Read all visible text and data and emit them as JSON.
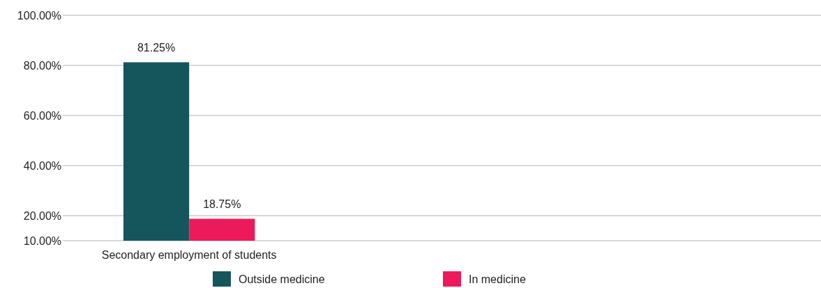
{
  "chart_data": {
    "type": "bar",
    "categories": [
      "Secondary employment of students"
    ],
    "series": [
      {
        "name": "Outside medicine",
        "color": "#14565c",
        "values": [
          81.25
        ],
        "value_labels": [
          "81.25%"
        ]
      },
      {
        "name": "In medicine",
        "color": "#ec1a5a",
        "values": [
          18.75
        ],
        "value_labels": [
          "18.75%"
        ]
      }
    ],
    "ylim": [
      10,
      100
    ],
    "yticks": [
      {
        "value": 10,
        "label": "10.00%"
      },
      {
        "value": 20,
        "label": "20.00%"
      },
      {
        "value": 40,
        "label": "40.00%"
      },
      {
        "value": 60,
        "label": "60.00%"
      },
      {
        "value": 80,
        "label": "80.00%"
      },
      {
        "value": 100,
        "label": "100.00%"
      }
    ],
    "grid": "y",
    "legend": "bottom"
  }
}
